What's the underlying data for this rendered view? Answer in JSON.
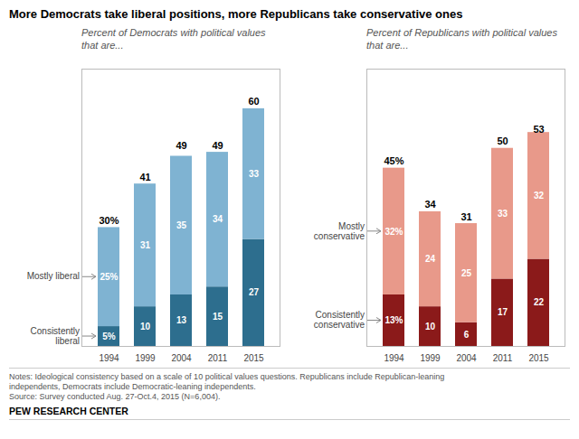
{
  "title": "More Democrats take liberal positions, more Republicans take conservative ones",
  "chart_data": [
    {
      "type": "bar",
      "stacked": true,
      "data_labels": true,
      "tick_labels": "x",
      "subtitle": "Percent of Democrats with political values\nthat are...",
      "categories": [
        "1994",
        "1999",
        "2004",
        "2011",
        "2015"
      ],
      "series": [
        {
          "name": "Consistently\nliberal",
          "color": "#2d6e8e",
          "values": [
            5,
            10,
            13,
            15,
            27
          ],
          "value_labels": [
            "5%",
            "10",
            "13",
            "15",
            "27"
          ]
        },
        {
          "name": "Mostly liberal",
          "color": "#7fb3d2",
          "values": [
            25,
            31,
            35,
            34,
            33
          ],
          "value_labels": [
            "25%",
            "31",
            "35",
            "34",
            "33"
          ]
        }
      ],
      "totals": [
        30,
        41,
        49,
        49,
        60
      ],
      "total_labels": [
        "30%",
        "41",
        "49",
        "49",
        "60"
      ],
      "ylim": [
        0,
        70
      ]
    },
    {
      "type": "bar",
      "stacked": true,
      "data_labels": true,
      "tick_labels": "x",
      "subtitle": "Percent of Republicans with political values\nthat are...",
      "categories": [
        "1994",
        "1999",
        "2004",
        "2011",
        "2015"
      ],
      "series": [
        {
          "name": "Consistently\nconservative",
          "color": "#8b1a1a",
          "values": [
            13,
            10,
            6,
            17,
            22
          ],
          "value_labels": [
            "13%",
            "10",
            "6",
            "17",
            "22"
          ]
        },
        {
          "name": "Mostly\nconservative",
          "color": "#e8998a",
          "values": [
            32,
            24,
            25,
            33,
            32
          ],
          "value_labels": [
            "32%",
            "24",
            "25",
            "33",
            "32"
          ]
        }
      ],
      "totals": [
        45,
        34,
        31,
        50,
        53
      ],
      "total_labels": [
        "45%",
        "34",
        "31",
        "50",
        "53"
      ],
      "ylim": [
        0,
        70
      ]
    }
  ],
  "notes": [
    "Notes: Ideological consistency based on a scale of 10 political values questions. Republicans include Republican-leaning",
    "independents, Democrats include Democratic-leaning independents.",
    "Source: Survey conducted Aug. 27-Oct.4, 2015 (N=6,004)."
  ],
  "source": "PEW RESEARCH CENTER"
}
